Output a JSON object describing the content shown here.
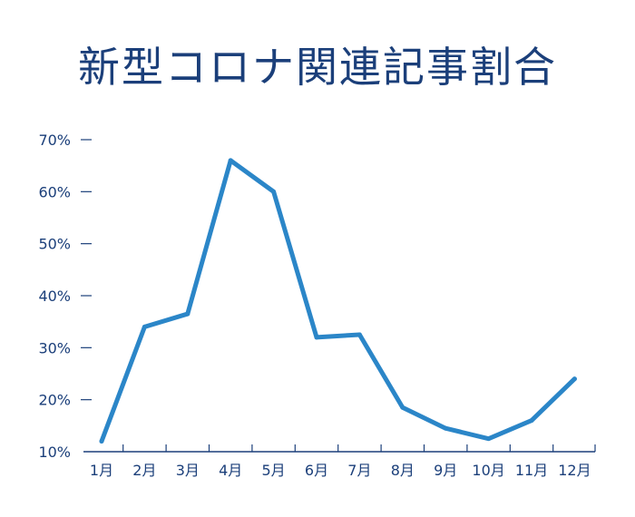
{
  "chart_data": {
    "type": "line",
    "title": "新型コロナ関連記事割合",
    "xlabel": "",
    "ylabel": "",
    "categories": [
      "1月",
      "2月",
      "3月",
      "4月",
      "5月",
      "6月",
      "7月",
      "8月",
      "9月",
      "10月",
      "11月",
      "12月"
    ],
    "series": [
      {
        "values": [
          12,
          34,
          36.5,
          66,
          60,
          32,
          32.5,
          18.5,
          14.5,
          12.5,
          16,
          24
        ]
      }
    ],
    "y_ticks": [
      "10%",
      "20%",
      "30%",
      "40%",
      "50%",
      "60%",
      "70%"
    ],
    "ylim": [
      10,
      70
    ],
    "grid": false,
    "colors": {
      "line": "#2b86c8",
      "text": "#1b3f7a",
      "axis": "#1b3f7a"
    }
  }
}
